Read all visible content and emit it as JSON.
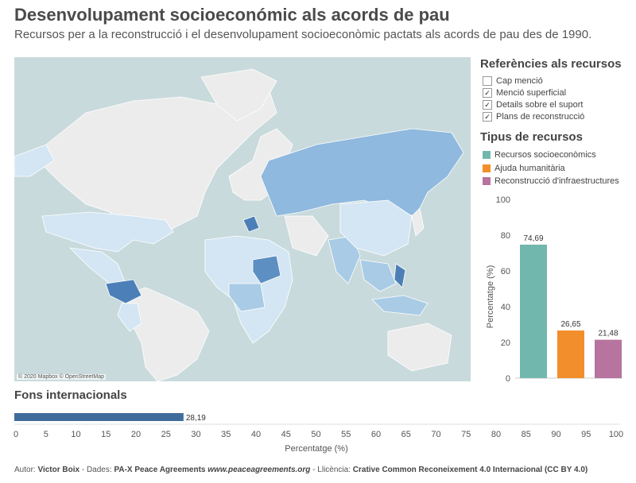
{
  "title": "Desenvolupament socioeconómic als acords de pau",
  "subtitle": "Recursos per a la reconstrucció i el desenvolupament socioeconòmic pactats als acords de pau des de 1990.",
  "map": {
    "credit": "© 2020 Mapbox © OpenStreetMap"
  },
  "references": {
    "title": "Referències als recursos",
    "items": [
      {
        "label": "Cap menció",
        "checked": false
      },
      {
        "label": "Menció superficial",
        "checked": true
      },
      {
        "label": "Details sobre el suport",
        "checked": true
      },
      {
        "label": "Plans de reconstrucció",
        "checked": true
      }
    ]
  },
  "resource_types": {
    "title": "Tipus de recursos",
    "items": [
      {
        "label": "Recursos socioeconòmics",
        "color": "#72b7ad"
      },
      {
        "label": "Ajuda humanitària",
        "color": "#f28e2b"
      },
      {
        "label": "Reconstrucció d'infraestructures",
        "color": "#b6749e"
      }
    ]
  },
  "fons": {
    "title": "Fons internacionals"
  },
  "chart_data": [
    {
      "type": "bar",
      "orientation": "vertical",
      "categories": [
        "Recursos socioeconòmics",
        "Ajuda humanitària",
        "Reconstrucció d'infraestructures"
      ],
      "values": [
        74.69,
        26.65,
        21.48
      ],
      "value_labels": [
        "74,69",
        "26,65",
        "21,48"
      ],
      "colors": [
        "#72b7ad",
        "#f28e2b",
        "#b6749e"
      ],
      "ylabel": "Percentatge (%)",
      "ylim": [
        0,
        100
      ],
      "yticks": [
        "0",
        "20",
        "40",
        "60",
        "80",
        "100"
      ]
    },
    {
      "type": "bar",
      "orientation": "horizontal",
      "categories": [
        "Fons internacionals"
      ],
      "values": [
        28.19
      ],
      "value_labels": [
        "28,19"
      ],
      "colors": [
        "#3e6d9c"
      ],
      "xlabel": "Percentatge (%)",
      "xlim": [
        0,
        100
      ],
      "xticks": [
        "0",
        "5",
        "10",
        "15",
        "20",
        "25",
        "30",
        "35",
        "40",
        "45",
        "50",
        "55",
        "60",
        "65",
        "70",
        "75",
        "80",
        "85",
        "90",
        "95",
        "100"
      ]
    }
  ],
  "footer": {
    "prefix_author": "Autor: ",
    "author": "Victor Boix",
    "prefix_data": " - Dades: ",
    "data_source": "PA-X Peace Agreements",
    "site": "www.peaceagreements.org",
    "prefix_licence": " - Llicència: ",
    "licence": "Crative Common Reconeixement 4.0 Internacional (CC BY 4.0)"
  }
}
